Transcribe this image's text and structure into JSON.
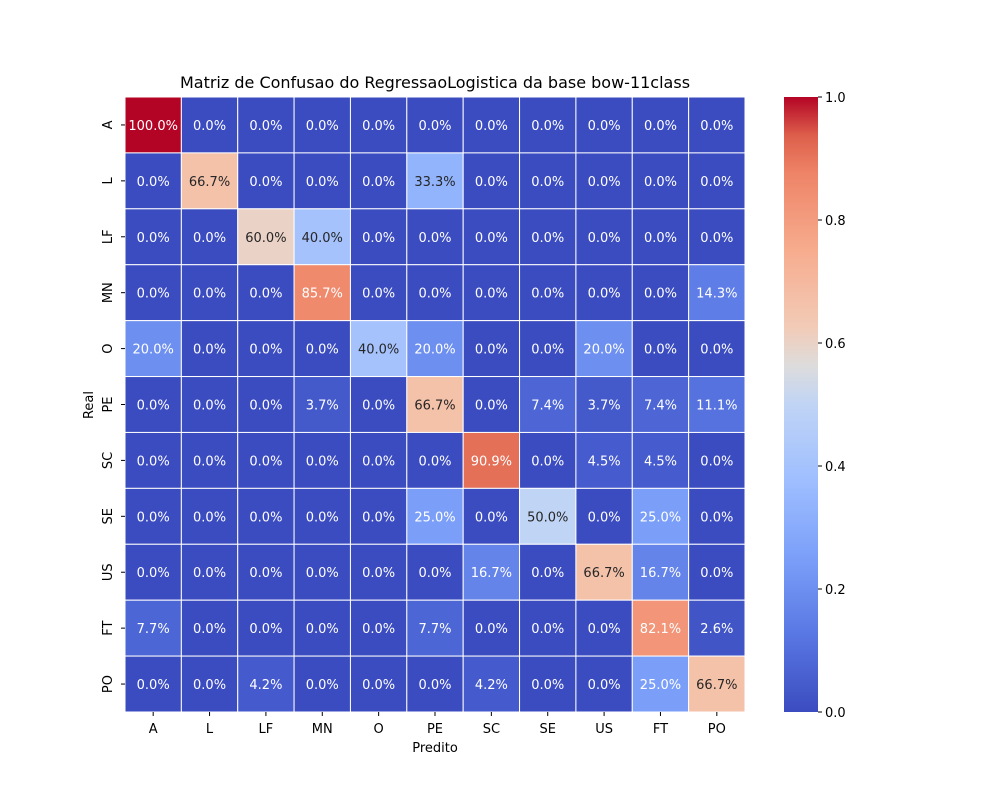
{
  "chart_data": {
    "type": "heatmap",
    "title": "Matriz de Confusao do RegressaoLogistica da base bow-11class",
    "xlabel": "Predito",
    "ylabel": "Real",
    "x_categories": [
      "A",
      "L",
      "LF",
      "MN",
      "O",
      "PE",
      "SC",
      "SE",
      "US",
      "FT",
      "PO"
    ],
    "y_categories": [
      "A",
      "L",
      "LF",
      "MN",
      "O",
      "PE",
      "SC",
      "SE",
      "US",
      "FT",
      "PO"
    ],
    "values": [
      [
        1.0,
        0.0,
        0.0,
        0.0,
        0.0,
        0.0,
        0.0,
        0.0,
        0.0,
        0.0,
        0.0
      ],
      [
        0.0,
        0.667,
        0.0,
        0.0,
        0.0,
        0.333,
        0.0,
        0.0,
        0.0,
        0.0,
        0.0
      ],
      [
        0.0,
        0.0,
        0.6,
        0.4,
        0.0,
        0.0,
        0.0,
        0.0,
        0.0,
        0.0,
        0.0
      ],
      [
        0.0,
        0.0,
        0.0,
        0.857,
        0.0,
        0.0,
        0.0,
        0.0,
        0.0,
        0.0,
        0.143
      ],
      [
        0.2,
        0.0,
        0.0,
        0.0,
        0.4,
        0.2,
        0.0,
        0.0,
        0.2,
        0.0,
        0.0
      ],
      [
        0.0,
        0.0,
        0.0,
        0.037,
        0.0,
        0.667,
        0.0,
        0.074,
        0.037,
        0.074,
        0.111
      ],
      [
        0.0,
        0.0,
        0.0,
        0.0,
        0.0,
        0.0,
        0.909,
        0.0,
        0.045,
        0.045,
        0.0
      ],
      [
        0.0,
        0.0,
        0.0,
        0.0,
        0.0,
        0.25,
        0.0,
        0.5,
        0.0,
        0.25,
        0.0
      ],
      [
        0.0,
        0.0,
        0.0,
        0.0,
        0.0,
        0.0,
        0.167,
        0.0,
        0.667,
        0.167,
        0.0
      ],
      [
        0.077,
        0.0,
        0.0,
        0.0,
        0.0,
        0.077,
        0.0,
        0.0,
        0.0,
        0.821,
        0.026
      ],
      [
        0.0,
        0.0,
        0.042,
        0.0,
        0.0,
        0.0,
        0.042,
        0.0,
        0.0,
        0.25,
        0.667
      ]
    ],
    "annotations": [
      [
        "100.0%",
        "0.0%",
        "0.0%",
        "0.0%",
        "0.0%",
        "0.0%",
        "0.0%",
        "0.0%",
        "0.0%",
        "0.0%",
        "0.0%"
      ],
      [
        "0.0%",
        "66.7%",
        "0.0%",
        "0.0%",
        "0.0%",
        "33.3%",
        "0.0%",
        "0.0%",
        "0.0%",
        "0.0%",
        "0.0%"
      ],
      [
        "0.0%",
        "0.0%",
        "60.0%",
        "40.0%",
        "0.0%",
        "0.0%",
        "0.0%",
        "0.0%",
        "0.0%",
        "0.0%",
        "0.0%"
      ],
      [
        "0.0%",
        "0.0%",
        "0.0%",
        "85.7%",
        "0.0%",
        "0.0%",
        "0.0%",
        "0.0%",
        "0.0%",
        "0.0%",
        "14.3%"
      ],
      [
        "20.0%",
        "0.0%",
        "0.0%",
        "0.0%",
        "40.0%",
        "20.0%",
        "0.0%",
        "0.0%",
        "20.0%",
        "0.0%",
        "0.0%"
      ],
      [
        "0.0%",
        "0.0%",
        "0.0%",
        "3.7%",
        "0.0%",
        "66.7%",
        "0.0%",
        "7.4%",
        "3.7%",
        "7.4%",
        "11.1%"
      ],
      [
        "0.0%",
        "0.0%",
        "0.0%",
        "0.0%",
        "0.0%",
        "0.0%",
        "90.9%",
        "0.0%",
        "4.5%",
        "4.5%",
        "0.0%"
      ],
      [
        "0.0%",
        "0.0%",
        "0.0%",
        "0.0%",
        "0.0%",
        "25.0%",
        "0.0%",
        "50.0%",
        "0.0%",
        "25.0%",
        "0.0%"
      ],
      [
        "0.0%",
        "0.0%",
        "0.0%",
        "0.0%",
        "0.0%",
        "0.0%",
        "16.7%",
        "0.0%",
        "66.7%",
        "16.7%",
        "0.0%"
      ],
      [
        "7.7%",
        "0.0%",
        "0.0%",
        "0.0%",
        "0.0%",
        "7.7%",
        "0.0%",
        "0.0%",
        "0.0%",
        "82.1%",
        "2.6%"
      ],
      [
        "0.0%",
        "0.0%",
        "4.2%",
        "0.0%",
        "0.0%",
        "0.0%",
        "4.2%",
        "0.0%",
        "0.0%",
        "25.0%",
        "66.7%"
      ]
    ],
    "colorbar": {
      "range": [
        0.0,
        1.0
      ],
      "ticks": [
        0.0,
        0.2,
        0.4,
        0.6,
        0.8,
        1.0
      ],
      "tick_labels": [
        "0.0",
        "0.2",
        "0.4",
        "0.6",
        "0.8",
        "1.0"
      ],
      "colormap": "coolwarm",
      "colormap_stops": [
        {
          "v": 0.0,
          "color": "#3b4cc0"
        },
        {
          "v": 0.125,
          "color": "#5977e3"
        },
        {
          "v": 0.25,
          "color": "#7b9ff9"
        },
        {
          "v": 0.375,
          "color": "#9ebeff"
        },
        {
          "v": 0.5,
          "color": "#c0d4f5"
        },
        {
          "v": 0.5625,
          "color": "#dddcdc"
        },
        {
          "v": 0.625,
          "color": "#f2cbb7"
        },
        {
          "v": 0.75,
          "color": "#f7ac8e"
        },
        {
          "v": 0.875,
          "color": "#ee8468"
        },
        {
          "v": 0.9375,
          "color": "#dd5f4b"
        },
        {
          "v": 1.0,
          "color": "#b40426"
        }
      ]
    },
    "grid": false,
    "legend": "colorbar-right"
  }
}
